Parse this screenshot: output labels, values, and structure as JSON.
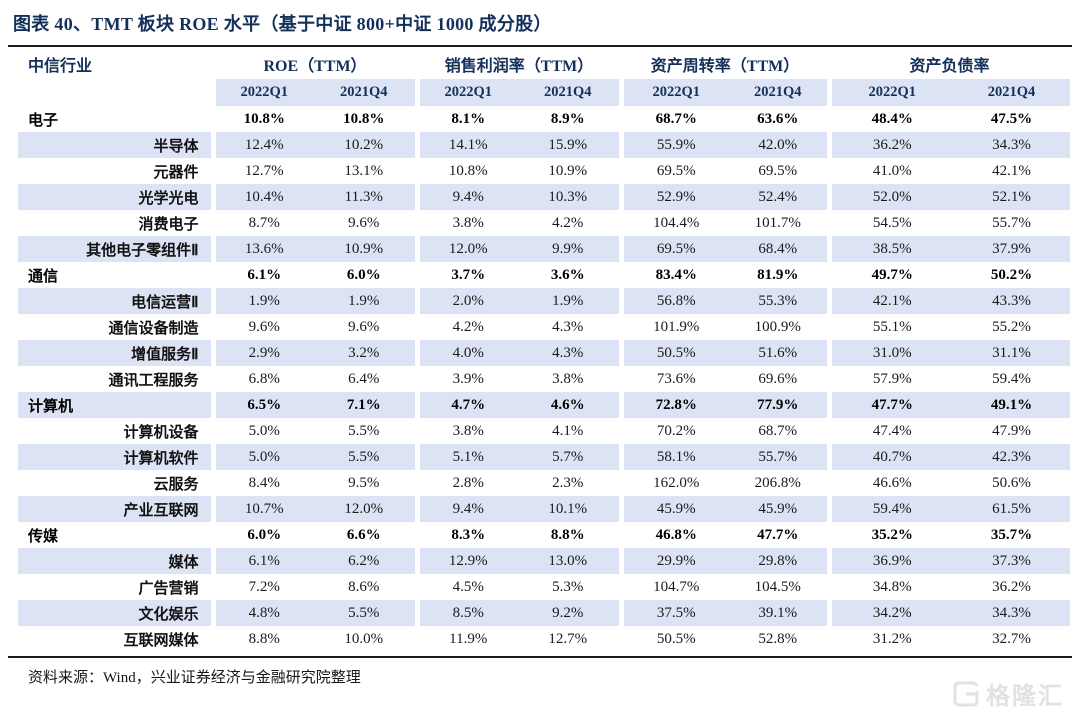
{
  "title": "图表 40、TMT 板块 ROE 水平（基于中证 800+中证 1000 成分股）",
  "table": {
    "industry_column_header": "中信行业",
    "groups": [
      {
        "label": "ROE（TTM）",
        "sub": [
          "2022Q1",
          "2021Q4"
        ]
      },
      {
        "label": "销售利润率（TTM）",
        "sub": [
          "2022Q1",
          "2021Q4"
        ]
      },
      {
        "label": "资产周转率（TTM）",
        "sub": [
          "2022Q1",
          "2021Q4"
        ]
      },
      {
        "label": "资产负债率",
        "sub": [
          "2022Q1",
          "2021Q4"
        ]
      }
    ],
    "rows": [
      {
        "name": "电子",
        "bold": true,
        "values": [
          "10.8%",
          "10.8%",
          "8.1%",
          "8.9%",
          "68.7%",
          "63.6%",
          "48.4%",
          "47.5%"
        ]
      },
      {
        "name": "半导体",
        "bold": false,
        "values": [
          "12.4%",
          "10.2%",
          "14.1%",
          "15.9%",
          "55.9%",
          "42.0%",
          "36.2%",
          "34.3%"
        ]
      },
      {
        "name": "元器件",
        "bold": false,
        "values": [
          "12.7%",
          "13.1%",
          "10.8%",
          "10.9%",
          "69.5%",
          "69.5%",
          "41.0%",
          "42.1%"
        ]
      },
      {
        "name": "光学光电",
        "bold": false,
        "values": [
          "10.4%",
          "11.3%",
          "9.4%",
          "10.3%",
          "52.9%",
          "52.4%",
          "52.0%",
          "52.1%"
        ]
      },
      {
        "name": "消费电子",
        "bold": false,
        "values": [
          "8.7%",
          "9.6%",
          "3.8%",
          "4.2%",
          "104.4%",
          "101.7%",
          "54.5%",
          "55.7%"
        ]
      },
      {
        "name": "其他电子零组件Ⅱ",
        "bold": false,
        "values": [
          "13.6%",
          "10.9%",
          "12.0%",
          "9.9%",
          "69.5%",
          "68.4%",
          "38.5%",
          "37.9%"
        ]
      },
      {
        "name": "通信",
        "bold": true,
        "values": [
          "6.1%",
          "6.0%",
          "3.7%",
          "3.6%",
          "83.4%",
          "81.9%",
          "49.7%",
          "50.2%"
        ]
      },
      {
        "name": "电信运营Ⅱ",
        "bold": false,
        "values": [
          "1.9%",
          "1.9%",
          "2.0%",
          "1.9%",
          "56.8%",
          "55.3%",
          "42.1%",
          "43.3%"
        ]
      },
      {
        "name": "通信设备制造",
        "bold": false,
        "values": [
          "9.6%",
          "9.6%",
          "4.2%",
          "4.3%",
          "101.9%",
          "100.9%",
          "55.1%",
          "55.2%"
        ]
      },
      {
        "name": "增值服务Ⅱ",
        "bold": false,
        "values": [
          "2.9%",
          "3.2%",
          "4.0%",
          "4.3%",
          "50.5%",
          "51.6%",
          "31.0%",
          "31.1%"
        ]
      },
      {
        "name": "通讯工程服务",
        "bold": false,
        "values": [
          "6.8%",
          "6.4%",
          "3.9%",
          "3.8%",
          "73.6%",
          "69.6%",
          "57.9%",
          "59.4%"
        ]
      },
      {
        "name": "计算机",
        "bold": true,
        "values": [
          "6.5%",
          "7.1%",
          "4.7%",
          "4.6%",
          "72.8%",
          "77.9%",
          "47.7%",
          "49.1%"
        ]
      },
      {
        "name": "计算机设备",
        "bold": false,
        "values": [
          "5.0%",
          "5.5%",
          "3.8%",
          "4.1%",
          "70.2%",
          "68.7%",
          "47.4%",
          "47.9%"
        ]
      },
      {
        "name": "计算机软件",
        "bold": false,
        "values": [
          "5.0%",
          "5.5%",
          "5.1%",
          "5.7%",
          "58.1%",
          "55.7%",
          "40.7%",
          "42.3%"
        ]
      },
      {
        "name": "云服务",
        "bold": false,
        "values": [
          "8.4%",
          "9.5%",
          "2.8%",
          "2.3%",
          "162.0%",
          "206.8%",
          "46.6%",
          "50.6%"
        ]
      },
      {
        "name": "产业互联网",
        "bold": false,
        "values": [
          "10.7%",
          "12.0%",
          "9.4%",
          "10.1%",
          "45.9%",
          "45.9%",
          "59.4%",
          "61.5%"
        ]
      },
      {
        "name": "传媒",
        "bold": true,
        "values": [
          "6.0%",
          "6.6%",
          "8.3%",
          "8.8%",
          "46.8%",
          "47.7%",
          "35.2%",
          "35.7%"
        ]
      },
      {
        "name": "媒体",
        "bold": false,
        "values": [
          "6.1%",
          "6.2%",
          "12.9%",
          "13.0%",
          "29.9%",
          "29.8%",
          "36.9%",
          "37.3%"
        ]
      },
      {
        "name": "广告营销",
        "bold": false,
        "values": [
          "7.2%",
          "8.6%",
          "4.5%",
          "5.3%",
          "104.7%",
          "104.5%",
          "34.8%",
          "36.2%"
        ]
      },
      {
        "name": "文化娱乐",
        "bold": false,
        "values": [
          "4.8%",
          "5.5%",
          "8.5%",
          "9.2%",
          "37.5%",
          "39.1%",
          "34.2%",
          "34.3%"
        ]
      },
      {
        "name": "互联网媒体",
        "bold": false,
        "values": [
          "8.8%",
          "10.0%",
          "11.9%",
          "12.7%",
          "50.5%",
          "52.8%",
          "31.2%",
          "32.7%"
        ]
      }
    ]
  },
  "footer": {
    "source": "资料来源：Wind，兴业证券经济与金融研究院整理"
  },
  "watermark": {
    "text": "格隆汇"
  },
  "colors": {
    "stripe": "#dce3f4",
    "header_navy": "#14305a",
    "rule": "#1c1c1c"
  }
}
